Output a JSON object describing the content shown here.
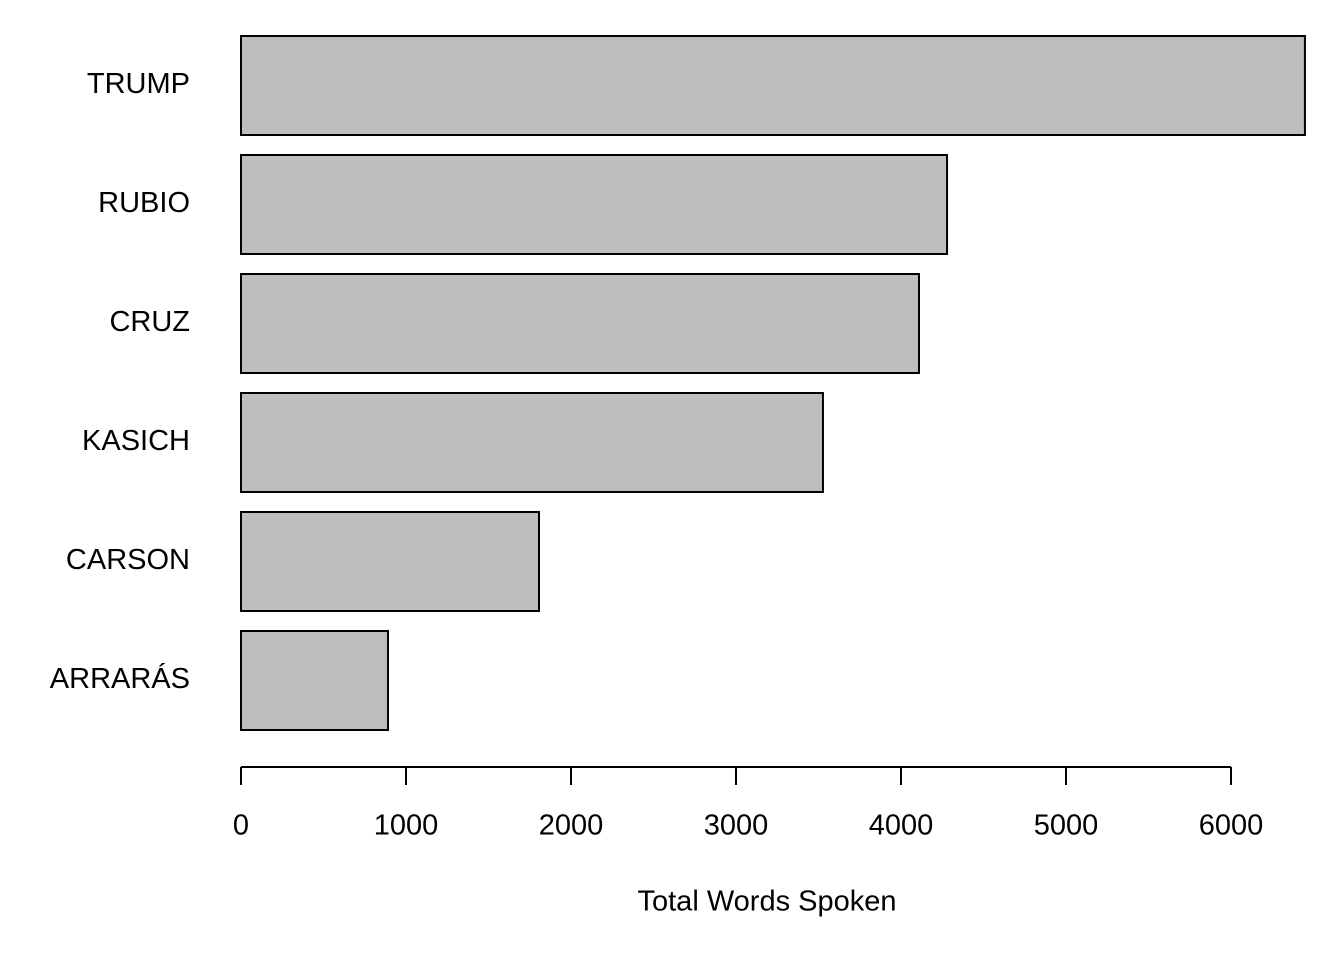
{
  "chart_data": {
    "type": "barh",
    "x_label": "Total Words Spoken",
    "categories": [
      "TRUMP",
      "RUBIO",
      "CRUZ",
      "KASICH",
      "CARSON",
      "ARRARÁS"
    ],
    "values": [
      6448,
      4279,
      4109,
      3527,
      1806,
      891
    ],
    "color": "#bebebe",
    "edge_color": "#000000",
    "xlim": [
      0,
      6000
    ],
    "xticks": [
      0,
      1000,
      2000,
      3000,
      4000,
      5000,
      6000
    ],
    "grid": false
  }
}
